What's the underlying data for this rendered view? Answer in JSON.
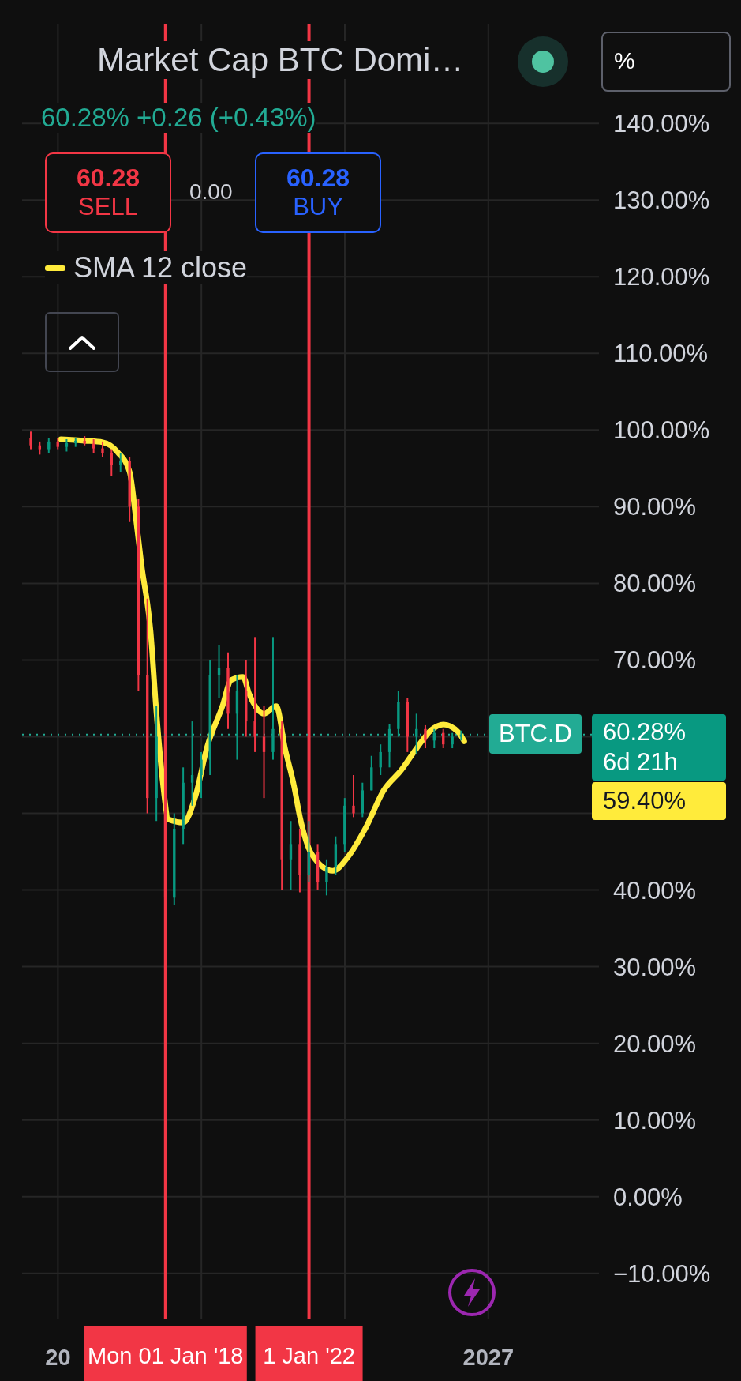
{
  "chart_data": {
    "type": "candlestick",
    "title": "Market Cap BTC Domi…",
    "subtitle": "60.28%  +0.26 (+0.43%)",
    "x": [
      "2014-04",
      "2014-07",
      "2014-10",
      "2015-01",
      "2015-04",
      "2015-07",
      "2015-10",
      "2016-01",
      "2016-04",
      "2016-07",
      "2016-10",
      "2017-01",
      "2017-04",
      "2017-07",
      "2017-10",
      "2018-01",
      "2018-04",
      "2018-07",
      "2018-10",
      "2019-01",
      "2019-04",
      "2019-07",
      "2019-10",
      "2020-01",
      "2020-04",
      "2020-07",
      "2020-10",
      "2021-01",
      "2021-04",
      "2021-07",
      "2021-10",
      "2022-01",
      "2022-04",
      "2022-07",
      "2022-10",
      "2023-01",
      "2023-04",
      "2023-07",
      "2023-10",
      "2024-01",
      "2024-04",
      "2024-07",
      "2024-10",
      "2025-01",
      "2025-04",
      "2025-07",
      "2025-10",
      "2026-01",
      "2026-04"
    ],
    "ohlc": [
      [
        99,
        99.8,
        97.5,
        98
      ],
      [
        98,
        98.5,
        96.8,
        97.5
      ],
      [
        97.5,
        99,
        97,
        98.5
      ],
      [
        98.5,
        99,
        97.5,
        97.8
      ],
      [
        97.8,
        98.8,
        97.2,
        98.3
      ],
      [
        98.3,
        99,
        97.8,
        98.6
      ],
      [
        98.6,
        99.2,
        98,
        98.2
      ],
      [
        98.2,
        98.8,
        97,
        97.6
      ],
      [
        97.6,
        98.5,
        96.5,
        97
      ],
      [
        97,
        97.5,
        94,
        95.5
      ],
      [
        95.5,
        97,
        94.5,
        96
      ],
      [
        96,
        96.5,
        88,
        90
      ],
      [
        90,
        91,
        66,
        68
      ],
      [
        68,
        78,
        50,
        52
      ],
      [
        52,
        64,
        49,
        60
      ],
      [
        60,
        68,
        37,
        39
      ],
      [
        39,
        50,
        38,
        48
      ],
      [
        48,
        56,
        46,
        54
      ],
      [
        54,
        62,
        51,
        55
      ],
      [
        55,
        58,
        52,
        57
      ],
      [
        57,
        70,
        55,
        68
      ],
      [
        68,
        72,
        65,
        69
      ],
      [
        69,
        71,
        61,
        63
      ],
      [
        63,
        68,
        57,
        66
      ],
      [
        66,
        70,
        60,
        62
      ],
      [
        62,
        73,
        58,
        60
      ],
      [
        60,
        64,
        52,
        58
      ],
      [
        58,
        73,
        57,
        61
      ],
      [
        61,
        62,
        40,
        44
      ],
      [
        44,
        49,
        40,
        46
      ],
      [
        46,
        48,
        39.7,
        42
      ],
      [
        42,
        49,
        41,
        45
      ],
      [
        45,
        46,
        40,
        41
      ],
      [
        41,
        44,
        39.3,
        43
      ],
      [
        43,
        47,
        42,
        46
      ],
      [
        46,
        52,
        45,
        51
      ],
      [
        51,
        55,
        49.5,
        50
      ],
      [
        50,
        54,
        49.5,
        53
      ],
      [
        53,
        57.5,
        53,
        56
      ],
      [
        56,
        59,
        55,
        58
      ],
      [
        58,
        61.6,
        56,
        61
      ],
      [
        61,
        66,
        60,
        64.5
      ],
      [
        64.5,
        65,
        58,
        60
      ],
      [
        60,
        63,
        57.8,
        61
      ],
      [
        61,
        61.5,
        58.5,
        59.5
      ],
      [
        59.5,
        61,
        58.5,
        60.5
      ],
      [
        60.5,
        61,
        58.5,
        59
      ],
      [
        59,
        60.5,
        58.5,
        60
      ],
      [
        60,
        60.8,
        59.5,
        60.28
      ]
    ],
    "colors": [
      "#f23645",
      "#f23645",
      "#089981",
      "#f23645",
      "#089981",
      "#089981",
      "#f23645",
      "#f23645",
      "#f23645",
      "#f23645",
      "#089981",
      "#f23645",
      "#f23645",
      "#f23645",
      "#089981",
      "#f23645",
      "#089981",
      "#089981",
      "#089981",
      "#089981",
      "#089981",
      "#089981",
      "#f23645",
      "#089981",
      "#f23645",
      "#f23645",
      "#f23645",
      "#089981",
      "#f23645",
      "#089981",
      "#f23645",
      "#089981",
      "#f23645",
      "#089981",
      "#089981",
      "#089981",
      "#f23645",
      "#089981",
      "#089981",
      "#089981",
      "#089981",
      "#089981",
      "#f23645",
      "#089981",
      "#f23645",
      "#089981",
      "#f23645",
      "#089981",
      "#089981"
    ],
    "series": [
      {
        "type": "line",
        "name": "SMA 12 close",
        "color": "#ffeb3b",
        "x": [
          "2015-02",
          "2015-10",
          "2016-04",
          "2016-09",
          "2017-01",
          "2017-03",
          "2017-05",
          "2017-08",
          "2017-10",
          "2017-12",
          "2018-02",
          "2018-07",
          "2018-11",
          "2019-03",
          "2019-08",
          "2019-11",
          "2020-03",
          "2020-05",
          "2020-10",
          "2021-02",
          "2021-05",
          "2021-08",
          "2021-10",
          "2022-02",
          "2022-09",
          "2023-02",
          "2023-08",
          "2024-02",
          "2024-08",
          "2025-01",
          "2025-06",
          "2025-10",
          "2026-03",
          "2026-05"
        ],
        "values": [
          98.8,
          98.6,
          98.4,
          97.1,
          94.5,
          88.9,
          82.4,
          73.8,
          63,
          54.4,
          49.2,
          48.8,
          52.2,
          58.7,
          63.9,
          67.4,
          67.8,
          65.6,
          63,
          64,
          58.5,
          53.6,
          49.5,
          44.6,
          42.5,
          44.3,
          48.1,
          53,
          55.7,
          58.5,
          60.9,
          61.6,
          60.6,
          59.4
        ]
      }
    ],
    "marker": "none",
    "legend": "top left",
    "grid": true,
    "xlim": [
      "2014-01",
      "2030-02"
    ],
    "xticks": [
      {
        "value": "2015-01",
        "label": "20"
      },
      {
        "value": "2019-01",
        "label": null
      },
      {
        "value": "2023-01",
        "label": null
      },
      {
        "value": "2027-01",
        "label": "2027"
      }
    ],
    "ylim": [
      -16,
      153
    ],
    "yticks": [
      {
        "value": -10,
        "label": "−10.00%"
      },
      {
        "value": 0,
        "label": "0.00%"
      },
      {
        "value": 10,
        "label": "10.00%"
      },
      {
        "value": 20,
        "label": "20.00%"
      },
      {
        "value": 30,
        "label": "30.00%"
      },
      {
        "value": 40,
        "label": "40.00%"
      },
      {
        "value": 50,
        "label": null
      },
      {
        "value": 60,
        "label": null
      },
      {
        "value": 70,
        "label": "70.00%"
      },
      {
        "value": 80,
        "label": "80.00%"
      },
      {
        "value": 90,
        "label": "90.00%"
      },
      {
        "value": 100,
        "label": "100.00%"
      },
      {
        "value": 110,
        "label": "110.00%"
      },
      {
        "value": 120,
        "label": "120.00%"
      },
      {
        "value": 130,
        "label": "130.00%"
      },
      {
        "value": 140,
        "label": "140.00%"
      }
    ],
    "ref_lines": [
      {
        "axis": "x",
        "value": "2018-01",
        "label": "Mon 01 Jan '18",
        "color": "#f23645"
      },
      {
        "axis": "x",
        "value": "2022-01",
        "label": "1 Jan '22",
        "color": "#f23645"
      },
      {
        "axis": "y",
        "value": 60.28,
        "label": "BTC.D",
        "color": "#22ab94",
        "line_style": "dotted"
      }
    ],
    "annotations": [
      "60.28",
      "SELL",
      "0.00",
      "60.28",
      "BUY",
      "%",
      "60.28%",
      "6d 21h",
      "59.40%"
    ]
  }
}
